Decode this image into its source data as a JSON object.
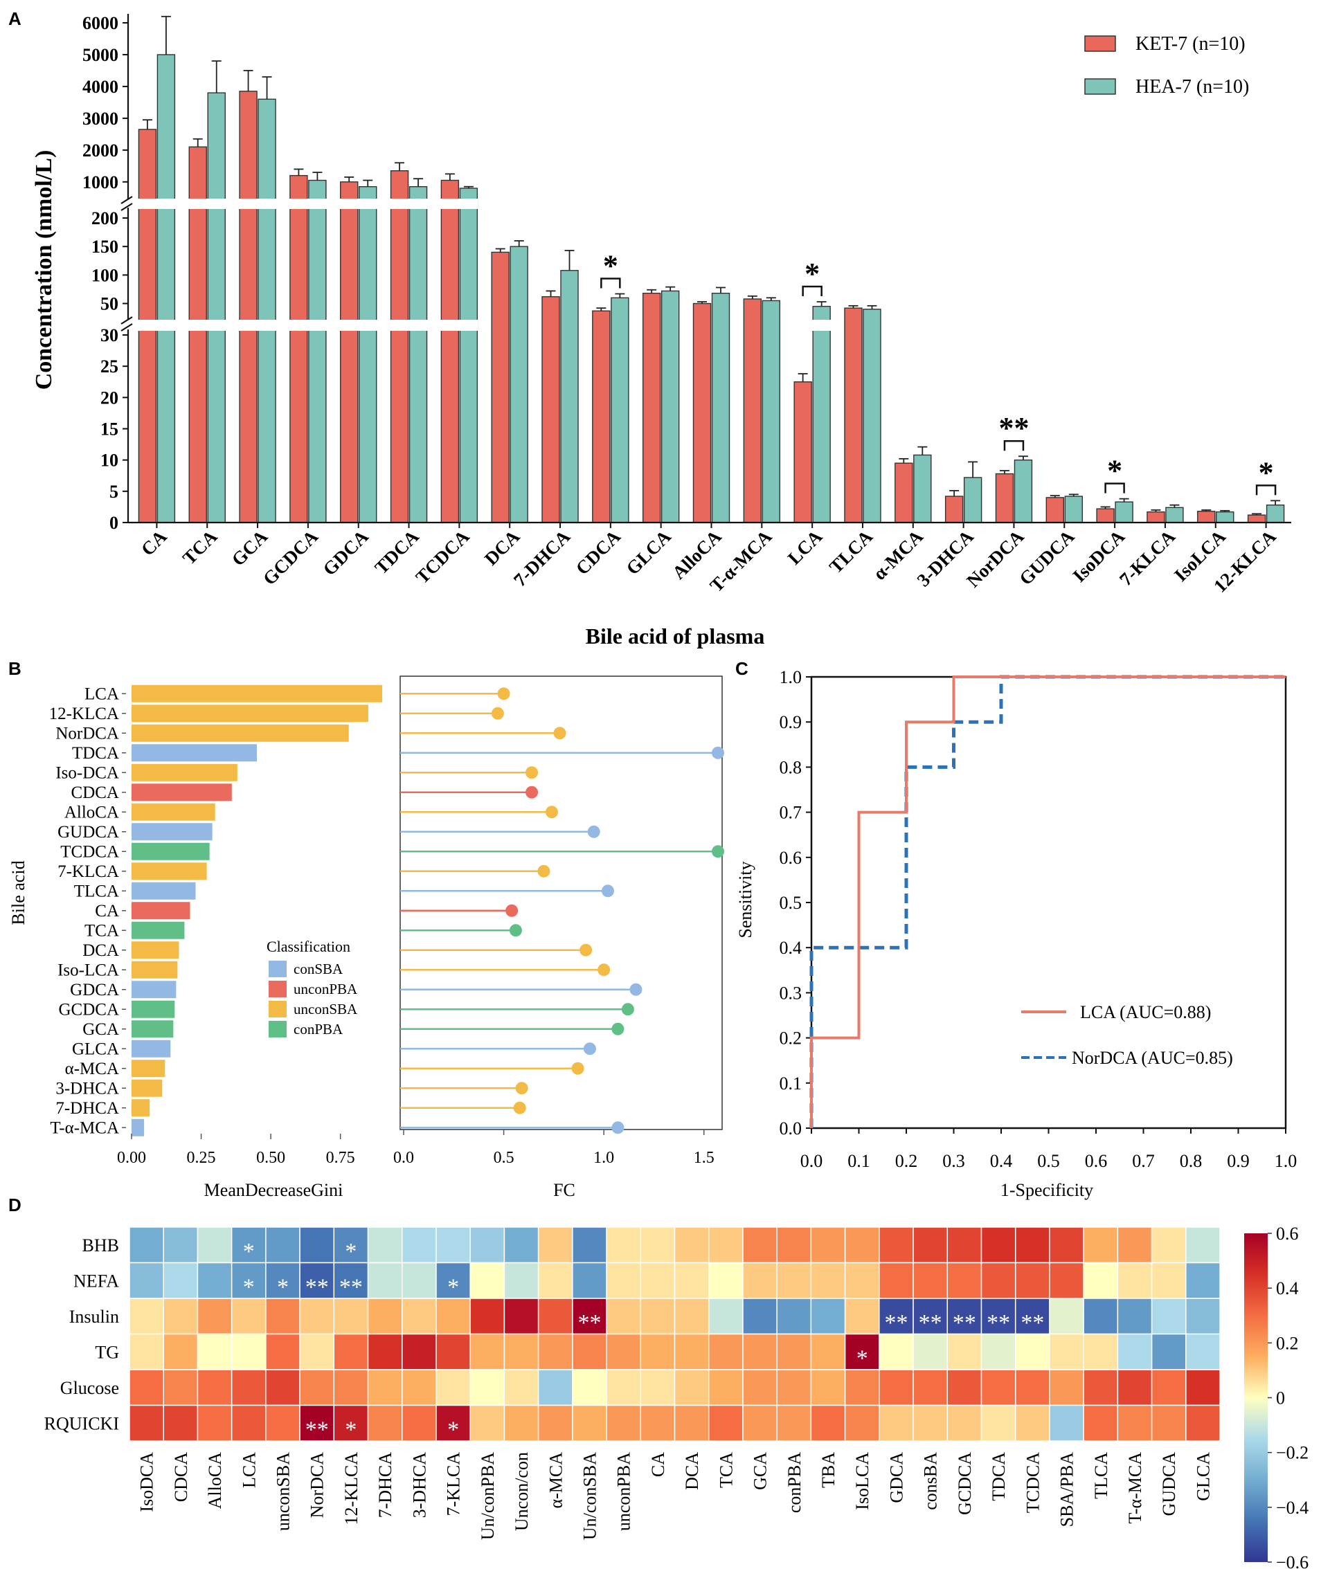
{
  "panel_labels": [
    "A",
    "B",
    "C",
    "D"
  ],
  "colors": {
    "ket": "#e8695b",
    "hea": "#7fc4b8",
    "conSBA": "#93b8e3",
    "unconPBA": "#eb6a5e",
    "unconSBA": "#f3bb45",
    "conPBA": "#5fbf86",
    "lca_roc": "#e87a6a",
    "nordca_roc": "#2b72b8"
  },
  "chart_data": [
    {
      "panel": "A",
      "type": "bar",
      "title": "",
      "xlabel": "Bile acid of plasma",
      "ylabel": "Concentration (nmol/L)",
      "categories": [
        "CA",
        "TCA",
        "GCA",
        "GCDCA",
        "GDCA",
        "TDCA",
        "TCDCA",
        "DCA",
        "7-DHCA",
        "CDCA",
        "GLCA",
        "AlloCA",
        "T-α-MCA",
        "LCA",
        "TLCA",
        "α-MCA",
        "3-DHCA",
        "NorDCA",
        "GUDCA",
        "IsoDCA",
        "7-KLCA",
        "IsoLCA",
        "12-KLCA"
      ],
      "series": [
        {
          "name": "KET-7 (n=10)",
          "values": [
            2650,
            2100,
            3850,
            1200,
            1000,
            1350,
            1050,
            140,
            62,
            37,
            68,
            50,
            58,
            22.5,
            42,
            9.5,
            4.2,
            7.8,
            4.0,
            2.2,
            1.7,
            1.8,
            1.2
          ],
          "errors": [
            300,
            250,
            650,
            200,
            150,
            250,
            200,
            6,
            10,
            5,
            6,
            3,
            5,
            1.3,
            4,
            0.7,
            0.9,
            0.5,
            0.3,
            0.3,
            0.3,
            0.2,
            0.2
          ]
        },
        {
          "name": "HEA-7 (n=10)",
          "values": [
            5000,
            3800,
            3600,
            1050,
            850,
            850,
            700,
            150,
            108,
            60,
            72,
            68,
            55,
            45,
            40,
            10.8,
            7.2,
            10.0,
            4.2,
            3.3,
            2.4,
            1.7,
            2.8
          ],
          "errors": [
            1200,
            1000,
            700,
            250,
            200,
            250,
            150,
            10,
            35,
            7,
            7,
            10,
            5,
            8,
            6,
            1.3,
            2.5,
            0.6,
            0.3,
            0.5,
            0.4,
            0.2,
            0.7
          ]
        }
      ],
      "axis_segments": [
        {
          "ylim": [
            0,
            30
          ],
          "ticks": [
            "0",
            "5",
            "10",
            "15",
            "20",
            "25",
            "30"
          ]
        },
        {
          "ylim": [
            30,
            200
          ],
          "ticks": [
            "50",
            "100",
            "150",
            "200"
          ]
        },
        {
          "ylim": [
            800,
            6000
          ],
          "ticks": [
            "1000",
            "2000",
            "3000",
            "4000",
            "5000",
            "6000"
          ]
        }
      ],
      "significance": [
        {
          "category": "CDCA",
          "label": "*"
        },
        {
          "category": "LCA",
          "label": "*"
        },
        {
          "category": "NorDCA",
          "label": "**"
        },
        {
          "category": "IsoDCA",
          "label": "*"
        },
        {
          "category": "12-KLCA",
          "label": "*"
        }
      ]
    },
    {
      "panel": "B-left",
      "type": "bar",
      "orientation": "horizontal",
      "xlabel": "MeanDecreaseGini",
      "ylabel": "Bile acid",
      "xlim": [
        0,
        0.9
      ],
      "xticks": [
        "0.00",
        "0.25",
        "0.50",
        "0.75"
      ],
      "categories": [
        "LCA",
        "12-KLCA",
        "NorDCA",
        "TDCA",
        "Iso-DCA",
        "CDCA",
        "AlloCA",
        "GUDCA",
        "TCDCA",
        "7-KLCA",
        "TLCA",
        "CA",
        "TCA",
        "DCA",
        "Iso-LCA",
        "GDCA",
        "GCDCA",
        "GCA",
        "GLCA",
        "α-MCA",
        "3-DHCA",
        "7-DHCA",
        "T-α-MCA"
      ],
      "values": [
        0.9,
        0.85,
        0.78,
        0.45,
        0.38,
        0.36,
        0.3,
        0.29,
        0.28,
        0.27,
        0.23,
        0.21,
        0.19,
        0.17,
        0.165,
        0.16,
        0.155,
        0.15,
        0.14,
        0.12,
        0.11,
        0.065,
        0.045
      ],
      "classes": [
        "unconSBA",
        "unconSBA",
        "unconSBA",
        "conSBA",
        "unconSBA",
        "unconPBA",
        "unconSBA",
        "conSBA",
        "conPBA",
        "unconSBA",
        "conSBA",
        "unconPBA",
        "conPBA",
        "unconSBA",
        "unconSBA",
        "conSBA",
        "conPBA",
        "conPBA",
        "conSBA",
        "unconSBA",
        "unconSBA",
        "unconSBA",
        "conSBA"
      ],
      "legend_title": "Classification",
      "legend": [
        "conSBA",
        "unconPBA",
        "unconSBA",
        "conPBA"
      ]
    },
    {
      "panel": "B-right",
      "type": "scatter",
      "style": "lollipop",
      "xlabel": "FC",
      "xlim": [
        0,
        1.57
      ],
      "xticks": [
        "0.0",
        "0.5",
        "1.0",
        "1.5"
      ],
      "values": [
        0.5,
        0.47,
        0.78,
        1.57,
        0.64,
        0.64,
        0.74,
        0.95,
        1.57,
        0.7,
        1.02,
        0.54,
        0.56,
        0.91,
        1.0,
        1.16,
        1.12,
        1.07,
        0.93,
        0.87,
        0.59,
        0.58,
        1.07
      ]
    },
    {
      "panel": "C",
      "type": "line",
      "xlabel": "1-Specificity",
      "ylabel": "Sensitivity",
      "xlim": [
        0,
        1
      ],
      "ylim": [
        0,
        1
      ],
      "ticks": [
        "0.0",
        "0.1",
        "0.2",
        "0.3",
        "0.4",
        "0.5",
        "0.6",
        "0.7",
        "0.8",
        "0.9",
        "1.0"
      ],
      "series": [
        {
          "name": "LCA (AUC=0.88)",
          "x": [
            0,
            0,
            0.1,
            0.1,
            0.2,
            0.2,
            0.3,
            0.3,
            1.0
          ],
          "y": [
            0,
            0.2,
            0.2,
            0.7,
            0.7,
            0.9,
            0.9,
            1.0,
            1.0
          ]
        },
        {
          "name": "NorDCA (AUC=0.85)",
          "x": [
            0,
            0,
            0.2,
            0.2,
            0.3,
            0.3,
            0.4,
            0.4,
            1.0
          ],
          "y": [
            0,
            0.4,
            0.4,
            0.8,
            0.8,
            0.9,
            0.9,
            1.0,
            1.0
          ]
        }
      ]
    },
    {
      "panel": "D",
      "type": "heatmap",
      "rows": [
        "BHB",
        "NEFA",
        "Insulin",
        "TG",
        "Glucose",
        "RQUICKI"
      ],
      "columns": [
        "IsoDCA",
        "CDCA",
        "AlloCA",
        "LCA",
        "unconSBA",
        "NorDCA",
        "12-KLCA",
        "7-DHCA",
        "3-DHCA",
        "7-KLCA",
        "Un/conPBA",
        "Uncon/con",
        "α-MCA",
        "Un/conSBA",
        "unconPBA",
        "CA",
        "DCA",
        "TCA",
        "GCA",
        "conPBA",
        "TBA",
        "IsoLCA",
        "GDCA",
        "consBA",
        "GCDCA",
        "TDCA",
        "TCDCA",
        "SBA/PBA",
        "TLCA",
        "T-α-MCA",
        "GUDCA",
        "GLCA"
      ],
      "values": [
        [
          -0.3,
          -0.25,
          -0.1,
          -0.35,
          -0.35,
          -0.45,
          -0.4,
          -0.1,
          -0.15,
          -0.15,
          -0.2,
          -0.3,
          0.1,
          -0.4,
          0.05,
          0.05,
          0.1,
          0.1,
          0.25,
          0.25,
          0.2,
          0.2,
          0.35,
          0.4,
          0.4,
          0.45,
          0.45,
          0.4,
          0.15,
          0.2,
          0.05,
          -0.1
        ],
        [
          -0.25,
          -0.15,
          -0.3,
          -0.35,
          -0.4,
          -0.5,
          -0.45,
          -0.1,
          -0.1,
          -0.4,
          0.0,
          -0.1,
          0.05,
          -0.35,
          0.05,
          0.05,
          0.05,
          0.0,
          0.1,
          0.1,
          0.1,
          0.1,
          0.3,
          0.3,
          0.3,
          0.35,
          0.35,
          0.35,
          0.0,
          0.05,
          0.05,
          -0.3
        ],
        [
          0.05,
          0.1,
          0.2,
          0.1,
          0.25,
          0.1,
          0.1,
          0.15,
          0.1,
          0.15,
          0.45,
          0.55,
          0.35,
          0.6,
          0.1,
          0.1,
          0.1,
          -0.1,
          -0.4,
          -0.35,
          -0.3,
          0.1,
          -0.55,
          -0.55,
          -0.55,
          -0.55,
          -0.55,
          -0.05,
          -0.4,
          -0.35,
          -0.15,
          -0.25
        ],
        [
          0.05,
          0.15,
          0.0,
          0.0,
          0.3,
          0.05,
          0.3,
          0.45,
          0.5,
          0.4,
          0.15,
          0.15,
          0.2,
          0.25,
          0.2,
          0.15,
          0.15,
          0.2,
          0.2,
          0.2,
          0.15,
          0.6,
          0.0,
          -0.05,
          0.05,
          -0.05,
          0.0,
          0.05,
          0.05,
          -0.15,
          -0.35,
          -0.15
        ],
        [
          0.3,
          0.25,
          0.3,
          0.35,
          0.4,
          0.25,
          0.25,
          0.15,
          0.15,
          0.05,
          0.0,
          0.05,
          -0.2,
          0.0,
          0.05,
          0.05,
          0.1,
          0.15,
          0.2,
          0.2,
          0.15,
          0.25,
          0.3,
          0.3,
          0.35,
          0.3,
          0.3,
          0.2,
          0.35,
          0.4,
          0.3,
          0.45
        ],
        [
          0.4,
          0.4,
          0.3,
          0.35,
          0.3,
          0.6,
          0.5,
          0.25,
          0.3,
          0.55,
          0.1,
          0.15,
          0.2,
          0.15,
          0.2,
          0.2,
          0.2,
          0.3,
          0.2,
          0.2,
          0.3,
          0.25,
          0.1,
          0.1,
          0.1,
          0.05,
          0.1,
          -0.2,
          0.3,
          0.25,
          0.25,
          0.35
        ]
      ],
      "annotations": [
        {
          "row": 0,
          "col": 3,
          "label": "*"
        },
        {
          "row": 0,
          "col": 6,
          "label": "*"
        },
        {
          "row": 1,
          "col": 3,
          "label": "*"
        },
        {
          "row": 1,
          "col": 4,
          "label": "*"
        },
        {
          "row": 1,
          "col": 5,
          "label": "**"
        },
        {
          "row": 1,
          "col": 6,
          "label": "**"
        },
        {
          "row": 1,
          "col": 9,
          "label": "*"
        },
        {
          "row": 2,
          "col": 13,
          "label": "**"
        },
        {
          "row": 2,
          "col": 22,
          "label": "**"
        },
        {
          "row": 2,
          "col": 23,
          "label": "**"
        },
        {
          "row": 2,
          "col": 24,
          "label": "**"
        },
        {
          "row": 2,
          "col": 25,
          "label": "**"
        },
        {
          "row": 2,
          "col": 26,
          "label": "**"
        },
        {
          "row": 3,
          "col": 21,
          "label": "*"
        },
        {
          "row": 5,
          "col": 5,
          "label": "**"
        },
        {
          "row": 5,
          "col": 6,
          "label": "*"
        },
        {
          "row": 5,
          "col": 9,
          "label": "*"
        }
      ],
      "colorbar": {
        "range": [
          -0.6,
          0.6
        ],
        "ticks": [
          "0.6",
          "0.4",
          "0.2",
          "0",
          "−0.2",
          "−0.4",
          "−0.6"
        ]
      }
    }
  ]
}
